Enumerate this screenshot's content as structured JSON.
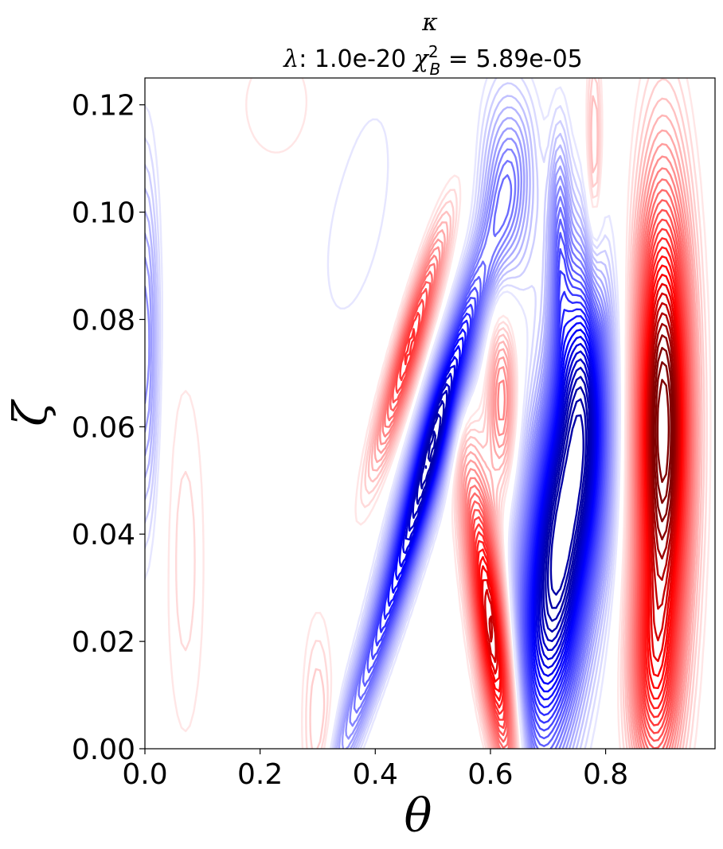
{
  "chart_data": {
    "type": "contour",
    "title_line1": "κ",
    "title_line2": "λ: 1.0e-20 χ²_B = 5.89e-05",
    "title_parts": {
      "lambda_sym": "λ",
      "lambda_text": ": 1.0e-20 ",
      "chi_sym": "χ",
      "chi_sup": "2",
      "chi_sub": "B",
      "chi_text": " = 5.89e-05"
    },
    "xlabel": "θ",
    "ylabel": "ζ",
    "xlim": [
      0.0,
      0.99
    ],
    "ylim": [
      0.0,
      0.125
    ],
    "xticks": [
      "0.0",
      "0.2",
      "0.4",
      "0.6",
      "0.8"
    ],
    "xtick_values": [
      0.0,
      0.2,
      0.4,
      0.6,
      0.8
    ],
    "yticks": [
      "0.00",
      "0.02",
      "0.04",
      "0.06",
      "0.08",
      "0.10",
      "0.12"
    ],
    "ytick_values": [
      0.0,
      0.02,
      0.04,
      0.06,
      0.08,
      0.1,
      0.12
    ],
    "colormap": "bwr",
    "colors": {
      "negative": "#0000ff",
      "positive": "#ff0000",
      "neutral": "#ffffff",
      "deep_positive": "#800000"
    },
    "grid": false,
    "features": [
      {
        "sign": "negative",
        "theta": 0.72,
        "zeta": 0.037,
        "label": "blue minimum"
      },
      {
        "sign": "negative",
        "theta": 0.51,
        "zeta": 0.062,
        "label": "blue band"
      },
      {
        "sign": "positive",
        "theta": 0.9,
        "zeta": 0.06,
        "label": "red maximum"
      },
      {
        "sign": "positive",
        "theta": 0.6,
        "zeta": 0.02,
        "label": "red band lower"
      },
      {
        "sign": "positive",
        "theta": 0.46,
        "zeta": 0.075,
        "label": "red band upper"
      },
      {
        "sign": "positive",
        "theta": 0.62,
        "zeta": 0.065,
        "label": "red band mid"
      },
      {
        "sign": "negative",
        "theta": 0.63,
        "zeta": 0.105,
        "label": "blue top"
      },
      {
        "sign": "negative",
        "theta": 0.0,
        "zeta": 0.075,
        "label": "blue left edge"
      }
    ]
  }
}
